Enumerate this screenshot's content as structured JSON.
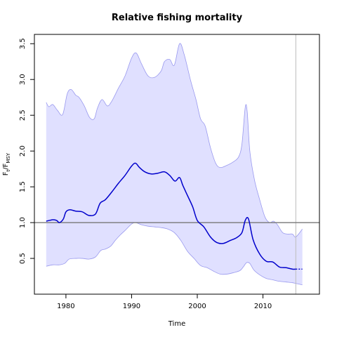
{
  "chart_data": {
    "type": "area",
    "title": "Relative fishing mortality",
    "xlabel": "Time",
    "ylabel": {
      "main": "F",
      "main_sub": "t",
      "sep": "/F",
      "sep_sub": "MSY"
    },
    "xlim": [
      1975.2,
      2018.6
    ],
    "ylim": [
      0.0,
      3.63
    ],
    "x_ticks": [
      1980,
      1990,
      2000,
      2010
    ],
    "y_ticks": [
      0.5,
      1.0,
      1.5,
      2.0,
      2.5,
      3.0,
      3.5
    ],
    "reference_line_y": 1.0,
    "vertical_marker_x": 2015.0,
    "colors": {
      "median": "#0000cc",
      "band_fill": "#e0e0ff",
      "band_edge": "#9999ee",
      "reference": "#777777",
      "vertical_marker": "#bbbbbb"
    },
    "series": [
      {
        "role": "median",
        "x": [
          1977.0,
          1978.0,
          1978.6,
          1979.0,
          1979.6,
          1980.0,
          1980.6,
          1981.5,
          1982.5,
          1983.5,
          1984.5,
          1985.2,
          1986.0,
          1987.0,
          1988.0,
          1989.0,
          1990.0,
          1990.6,
          1991.2,
          1992.0,
          1993.0,
          1994.0,
          1995.0,
          1995.8,
          1996.6,
          1997.3,
          1997.8,
          1998.5,
          1999.3,
          2000.0,
          2001.0,
          2002.0,
          2003.0,
          2004.0,
          2005.0,
          2006.0,
          2006.8,
          2007.3,
          2007.8,
          2008.5,
          2009.5,
          2010.5,
          2011.5,
          2012.5,
          2013.5,
          2014.5,
          2015.0
        ],
        "y": [
          1.02,
          1.04,
          1.03,
          1.0,
          1.05,
          1.15,
          1.18,
          1.16,
          1.15,
          1.1,
          1.12,
          1.27,
          1.32,
          1.43,
          1.55,
          1.66,
          1.79,
          1.83,
          1.77,
          1.71,
          1.68,
          1.69,
          1.71,
          1.66,
          1.58,
          1.63,
          1.52,
          1.38,
          1.22,
          1.03,
          0.94,
          0.8,
          0.72,
          0.71,
          0.75,
          0.79,
          0.86,
          1.03,
          1.05,
          0.76,
          0.56,
          0.46,
          0.45,
          0.38,
          0.37,
          0.35,
          0.35
        ]
      },
      {
        "role": "median-projection",
        "x": [
          2015.0,
          2016.0
        ],
        "y": [
          0.35,
          0.35
        ]
      },
      {
        "role": "band-upper",
        "x": [
          1977.0,
          1977.4,
          1978.0,
          1978.7,
          1979.5,
          1980.2,
          1980.8,
          1981.5,
          1982.0,
          1982.8,
          1983.6,
          1984.3,
          1984.8,
          1985.5,
          1986.3,
          1987.0,
          1988.0,
          1989.0,
          1990.0,
          1990.7,
          1991.5,
          1992.5,
          1993.5,
          1994.5,
          1995.0,
          1995.8,
          1996.5,
          1997.3,
          1998.0,
          1999.0,
          1999.8,
          2000.5,
          2001.2,
          2002.0,
          2002.8,
          2003.5,
          2004.5,
          2005.5,
          2006.3,
          2006.8,
          2007.3,
          2007.6,
          2008.0,
          2008.7,
          2009.5,
          2010.3,
          2011.0,
          2011.6,
          2012.2,
          2013.0,
          2013.8,
          2014.5,
          2015.0,
          2016.0
        ],
        "y": [
          2.68,
          2.62,
          2.65,
          2.57,
          2.51,
          2.8,
          2.86,
          2.78,
          2.75,
          2.63,
          2.47,
          2.45,
          2.6,
          2.72,
          2.63,
          2.7,
          2.88,
          3.05,
          3.3,
          3.37,
          3.22,
          3.05,
          3.03,
          3.12,
          3.25,
          3.28,
          3.2,
          3.5,
          3.35,
          2.98,
          2.72,
          2.45,
          2.35,
          2.05,
          1.83,
          1.77,
          1.8,
          1.85,
          1.92,
          2.1,
          2.61,
          2.55,
          2.0,
          1.6,
          1.32,
          1.08,
          1.0,
          1.02,
          0.97,
          0.86,
          0.84,
          0.84,
          0.8,
          0.91
        ]
      },
      {
        "role": "band-lower",
        "x": [
          1977.0,
          1978.0,
          1979.0,
          1979.8,
          1980.5,
          1981.5,
          1982.5,
          1983.5,
          1984.5,
          1985.3,
          1986.0,
          1986.8,
          1987.5,
          1988.3,
          1989.0,
          1990.0,
          1990.6,
          1991.5,
          1992.5,
          1993.5,
          1994.5,
          1995.5,
          1996.5,
          1997.5,
          1998.5,
          1999.5,
          2000.5,
          2001.5,
          2002.5,
          2003.5,
          2004.5,
          2005.5,
          2006.5,
          2007.0,
          2007.5,
          2008.0,
          2008.6,
          2009.5,
          2010.5,
          2011.5,
          2012.5,
          2013.5,
          2014.5,
          2015.0,
          2016.0
        ],
        "y": [
          0.39,
          0.41,
          0.41,
          0.43,
          0.49,
          0.5,
          0.5,
          0.49,
          0.52,
          0.61,
          0.63,
          0.67,
          0.75,
          0.83,
          0.89,
          0.98,
          1.0,
          0.97,
          0.95,
          0.94,
          0.93,
          0.91,
          0.86,
          0.75,
          0.6,
          0.5,
          0.4,
          0.37,
          0.32,
          0.28,
          0.28,
          0.3,
          0.33,
          0.38,
          0.44,
          0.43,
          0.34,
          0.27,
          0.22,
          0.2,
          0.18,
          0.17,
          0.16,
          0.15,
          0.13
        ]
      }
    ],
    "grid": false,
    "legend": "none"
  }
}
